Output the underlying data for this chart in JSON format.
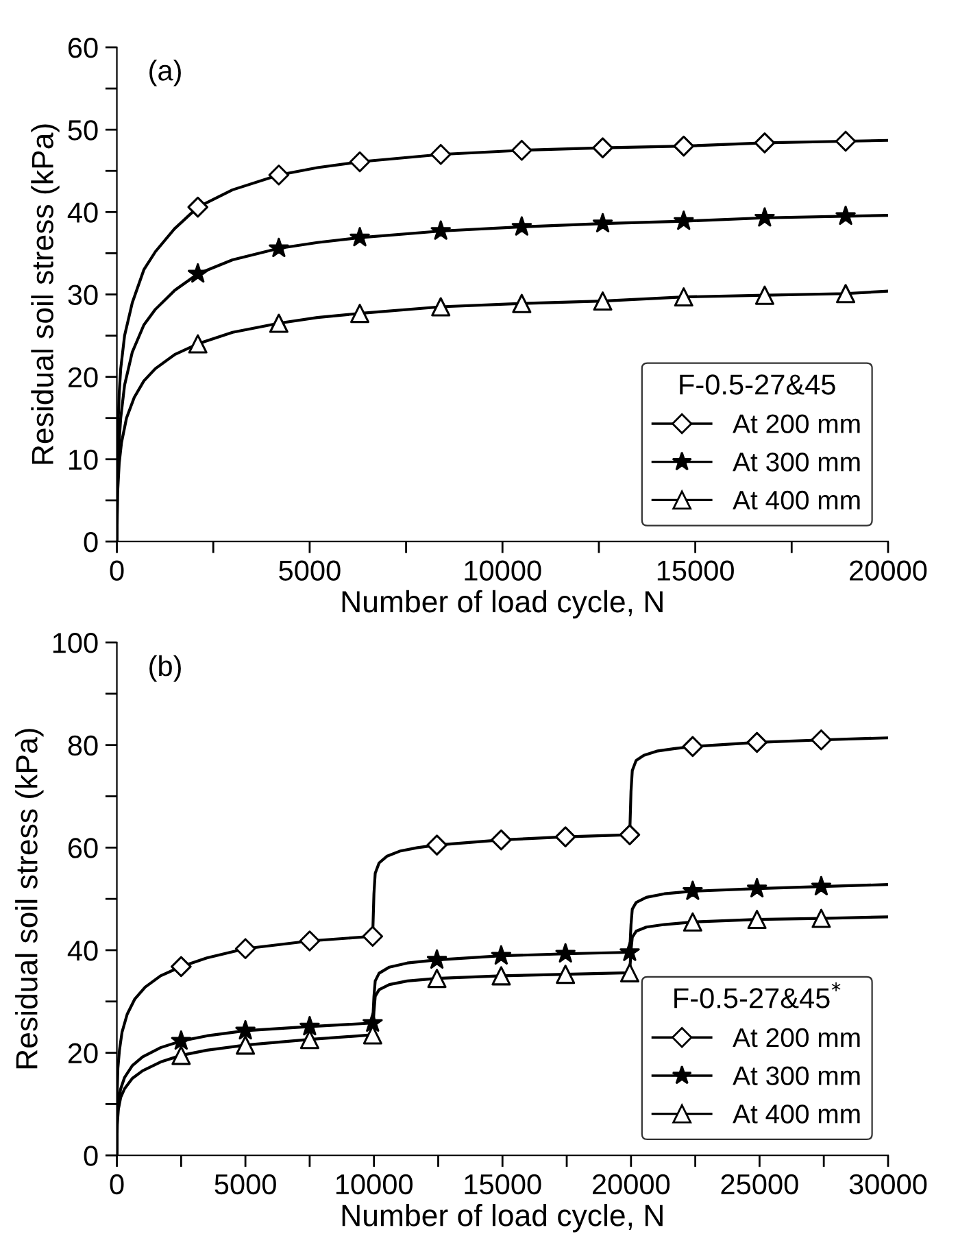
{
  "chart_data": [
    {
      "type": "line",
      "xlabel": "Number of load cycle, N",
      "ylabel": "Residual soil stress (kPa)",
      "legend_title": "F-0.5-27&45",
      "annotations": [
        "(a)"
      ],
      "legend": "bottom right",
      "grid": false,
      "xlim": [
        0,
        20000
      ],
      "ylim": [
        0,
        60
      ],
      "xticks": [
        0,
        {
          "value": 2500,
          "label": null
        },
        5000,
        {
          "value": 7500,
          "label": null
        },
        10000,
        {
          "value": 12500,
          "label": null
        },
        15000,
        {
          "value": 17500,
          "label": null
        },
        20000
      ],
      "yticks": [
        0,
        {
          "value": 5,
          "label": null
        },
        10,
        {
          "value": 15,
          "label": null
        },
        20,
        {
          "value": 25,
          "label": null
        },
        30,
        {
          "value": 35,
          "label": null
        },
        40,
        {
          "value": 45,
          "label": null
        },
        50,
        {
          "value": 55,
          "label": null
        },
        60
      ],
      "series": [
        {
          "color": "#000000",
          "marker": "none",
          "x": [
            0,
            10,
            30,
            60,
            100,
            200,
            400,
            700,
            1000,
            1500,
            2100,
            3000,
            4200,
            5200,
            6300,
            8400,
            10500,
            12600,
            14700,
            16800,
            18900,
            20000
          ],
          "values": [
            0,
            8,
            14,
            18,
            21,
            25,
            29,
            33,
            35.2,
            38,
            40.6,
            42.7,
            44.5,
            45.4,
            46.1,
            47.0,
            47.5,
            47.8,
            48.0,
            48.4,
            48.6,
            48.7
          ]
        },
        {
          "color": "#000000",
          "marker": "none",
          "x": [
            0,
            15,
            50,
            100,
            200,
            400,
            700,
            1000,
            1500,
            2100,
            3000,
            4200,
            5200,
            6300,
            8400,
            10500,
            12600,
            14700,
            16800,
            18900,
            20000
          ],
          "values": [
            0,
            7,
            11.5,
            15,
            19,
            23,
            26.3,
            28.2,
            30.5,
            32.5,
            34.2,
            35.6,
            36.3,
            36.9,
            37.7,
            38.2,
            38.6,
            38.9,
            39.3,
            39.5,
            39.6
          ]
        },
        {
          "color": "#000000",
          "marker": "none",
          "x": [
            0,
            20,
            60,
            120,
            250,
            450,
            700,
            1000,
            1500,
            2100,
            3000,
            4200,
            5200,
            6300,
            8400,
            10500,
            12600,
            14700,
            16800,
            18900,
            20000
          ],
          "values": [
            0,
            6,
            9.5,
            12,
            15,
            17.5,
            19.5,
            21,
            22.7,
            24.0,
            25.4,
            26.5,
            27.2,
            27.7,
            28.5,
            28.9,
            29.2,
            29.7,
            29.9,
            30.1,
            30.4
          ]
        },
        {
          "type": "scatter",
          "name": "At 200 mm",
          "color": "#000000",
          "marker": "diamond",
          "x": [
            2100,
            4200,
            6300,
            8400,
            10500,
            12600,
            14700,
            16800,
            18900
          ],
          "values": [
            40.6,
            44.5,
            46.1,
            47.0,
            47.5,
            47.8,
            48.0,
            48.4,
            48.6
          ]
        },
        {
          "type": "scatter",
          "name": "At 300 mm",
          "color": "#000000",
          "marker": "star",
          "x": [
            2100,
            4200,
            6300,
            8400,
            10500,
            12600,
            14700,
            16800,
            18900
          ],
          "values": [
            32.5,
            35.6,
            36.9,
            37.7,
            38.2,
            38.6,
            38.9,
            39.3,
            39.5
          ]
        },
        {
          "type": "scatter",
          "name": "At 400 mm",
          "color": "#000000",
          "marker": "triangle",
          "x": [
            2100,
            4200,
            6300,
            8400,
            10500,
            12600,
            14700,
            16800,
            18900
          ],
          "values": [
            24.0,
            26.5,
            27.7,
            28.5,
            28.9,
            29.2,
            29.7,
            29.9,
            30.1
          ]
        }
      ]
    },
    {
      "type": "line",
      "xlabel": "Number of load cycle, N",
      "ylabel": "Residual soil stress (kPa)",
      "legend_title": "F-0.5-27&45$^{*}$",
      "annotations": [
        "(b)"
      ],
      "legend": "bottom right",
      "grid": false,
      "xlim": [
        0,
        30000
      ],
      "ylim": [
        0,
        100
      ],
      "xticks": [
        0,
        {
          "value": 2500,
          "label": null
        },
        5000,
        {
          "value": 7500,
          "label": null
        },
        10000,
        {
          "value": 12500,
          "label": null
        },
        15000,
        {
          "value": 17500,
          "label": null
        },
        20000,
        {
          "value": 22500,
          "label": null
        },
        25000,
        {
          "value": 27500,
          "label": null
        },
        30000
      ],
      "yticks": [
        0,
        {
          "value": 10,
          "label": null
        },
        20,
        {
          "value": 30,
          "label": null
        },
        40,
        {
          "value": 50,
          "label": null
        },
        60,
        {
          "value": 70,
          "label": null
        },
        80,
        {
          "value": 90,
          "label": null
        },
        100
      ],
      "series": [
        {
          "color": "#000000",
          "marker": "none",
          "x": [
            0,
            10,
            40,
            100,
            200,
            400,
            700,
            1100,
            1700,
            2500,
            3500,
            5000,
            7500,
            9950,
            10000,
            10050,
            10200,
            10500,
            11000,
            11700,
            12450,
            14950,
            17450,
            19950,
            20000,
            20050,
            20200,
            20500,
            21000,
            21700,
            22400,
            24900,
            27400,
            30000
          ],
          "values": [
            0,
            12,
            17,
            20.5,
            24,
            27.5,
            30.5,
            32.8,
            35,
            36.8,
            38.5,
            40.3,
            41.8,
            42.7,
            51,
            55,
            57,
            58.3,
            59.3,
            60,
            60.5,
            61.5,
            62.1,
            62.5,
            71,
            75,
            77,
            78,
            78.8,
            79.3,
            79.7,
            80.5,
            81.0,
            81.4
          ]
        },
        {
          "color": "#000000",
          "marker": "none",
          "x": [
            0,
            15,
            60,
            150,
            300,
            600,
            1000,
            1700,
            2500,
            3500,
            5000,
            7500,
            9950,
            10000,
            10050,
            10200,
            10600,
            11300,
            12450,
            14950,
            17450,
            19950,
            20000,
            20050,
            20200,
            20600,
            21300,
            22400,
            24900,
            27400,
            30000
          ],
          "values": [
            0,
            7,
            10.5,
            13,
            15.2,
            17.5,
            19.2,
            21,
            22.3,
            23.3,
            24.3,
            25.1,
            25.8,
            31,
            34,
            35.5,
            36.7,
            37.5,
            38.1,
            38.9,
            39.3,
            39.6,
            45,
            48,
            49.3,
            50.3,
            51,
            51.5,
            52.0,
            52.4,
            52.8
          ]
        },
        {
          "color": "#000000",
          "marker": "none",
          "x": [
            0,
            15,
            60,
            150,
            300,
            600,
            1000,
            1700,
            2500,
            3500,
            5000,
            7500,
            9950,
            10000,
            10050,
            10200,
            10600,
            11300,
            12450,
            14950,
            17450,
            19950,
            20000,
            20050,
            20200,
            20600,
            21300,
            22400,
            24900,
            27400,
            30000
          ],
          "values": [
            0,
            6,
            9,
            11.3,
            13,
            15,
            16.5,
            18.2,
            19.5,
            20.5,
            21.5,
            22.6,
            23.5,
            28,
            31,
            32.3,
            33.3,
            34,
            34.5,
            35.0,
            35.3,
            35.6,
            40,
            42.5,
            43.7,
            44.5,
            45,
            45.5,
            46.0,
            46.2,
            46.5
          ]
        },
        {
          "type": "scatter",
          "name": "At 200 mm",
          "color": "#000000",
          "marker": "diamond",
          "x": [
            2500,
            5000,
            7500,
            9950,
            12450,
            14950,
            17450,
            19950,
            22400,
            24900,
            27400
          ],
          "values": [
            36.8,
            40.3,
            41.8,
            42.7,
            60.5,
            61.5,
            62.1,
            62.5,
            79.7,
            80.5,
            81.0
          ]
        },
        {
          "type": "scatter",
          "name": "At 300 mm",
          "color": "#000000",
          "marker": "star",
          "x": [
            2500,
            5000,
            7500,
            9950,
            12450,
            14950,
            17450,
            19950,
            22400,
            24900,
            27400
          ],
          "values": [
            22.3,
            24.3,
            25.1,
            25.8,
            38.1,
            38.9,
            39.3,
            39.6,
            51.5,
            52.0,
            52.4
          ]
        },
        {
          "type": "scatter",
          "name": "At 400 mm",
          "color": "#000000",
          "marker": "triangle",
          "x": [
            2500,
            5000,
            7500,
            9950,
            12450,
            14950,
            17450,
            19950,
            22400,
            24900,
            27400
          ],
          "values": [
            19.5,
            21.5,
            22.6,
            23.5,
            34.5,
            35.0,
            35.3,
            35.6,
            45.5,
            46.0,
            46.2
          ]
        }
      ]
    }
  ]
}
